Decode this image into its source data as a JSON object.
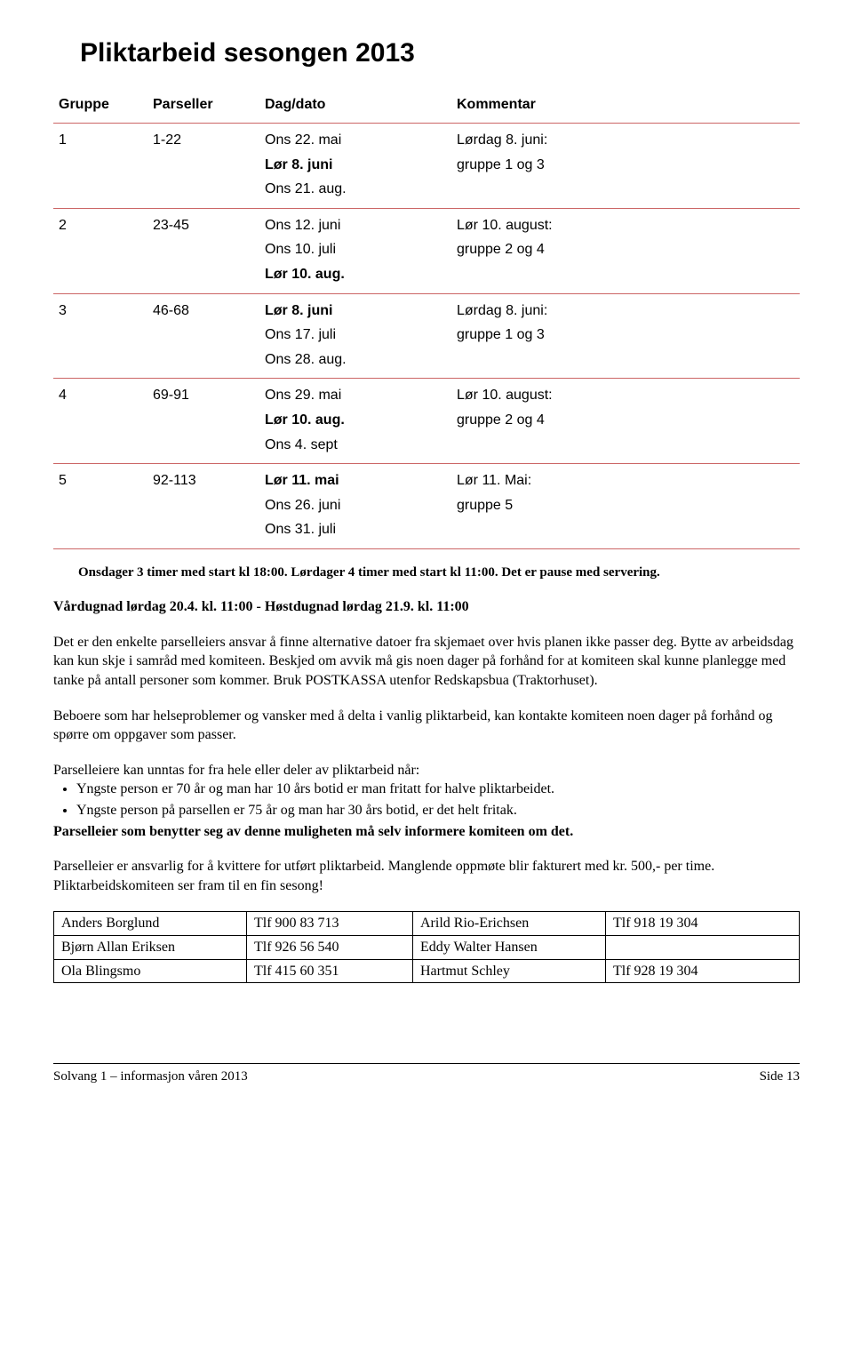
{
  "heading": "Pliktarbeid sesongen 2013",
  "table": {
    "headers": [
      "Gruppe",
      "Parseller",
      "Dag/dato",
      "Kommentar"
    ],
    "rows": [
      {
        "gruppe": "1",
        "parseller": "1-22",
        "dagdato": [
          {
            "text": "Ons 22. mai",
            "bold": false
          },
          {
            "text": "Lør  8. juni",
            "bold": true
          },
          {
            "text": "Ons 21. aug.",
            "bold": false
          }
        ],
        "kommentar": [
          {
            "text": "Lørdag 8. juni:",
            "bold": false
          },
          {
            "text": "gruppe 1 og 3",
            "bold": false
          }
        ]
      },
      {
        "gruppe": "2",
        "parseller": "23-45",
        "dagdato": [
          {
            "text": "Ons 12. juni",
            "bold": false
          },
          {
            "text": "Ons 10. juli",
            "bold": false
          },
          {
            "text": "Lør 10. aug.",
            "bold": true
          }
        ],
        "kommentar": [
          {
            "text": "Lør 10. august:",
            "bold": false
          },
          {
            "text": "gruppe 2 og 4",
            "bold": false
          }
        ]
      },
      {
        "gruppe": "3",
        "parseller": "46-68",
        "dagdato": [
          {
            "text": "Lør 8. juni",
            "bold": true
          },
          {
            "text": "Ons 17. juli",
            "bold": false
          },
          {
            "text": "Ons 28. aug.",
            "bold": false
          }
        ],
        "kommentar": [
          {
            "text": "Lørdag 8. juni:",
            "bold": false
          },
          {
            "text": "gruppe 1 og 3",
            "bold": false
          }
        ]
      },
      {
        "gruppe": "4",
        "parseller": "69-91",
        "dagdato": [
          {
            "text": "Ons 29. mai",
            "bold": false
          },
          {
            "text": "Lør 10. aug.",
            "bold": true
          },
          {
            "text": "Ons 4. sept",
            "bold": false
          }
        ],
        "kommentar": [
          {
            "text": "Lør 10. august:",
            "bold": false
          },
          {
            "text": "gruppe 2 og 4",
            "bold": false
          }
        ]
      },
      {
        "gruppe": "5",
        "parseller": "92-113",
        "dagdato": [
          {
            "text": "Lør 11. mai",
            "bold": true
          },
          {
            "text": "Ons 26. juni",
            "bold": false
          },
          {
            "text": "Ons 31. juli",
            "bold": false
          }
        ],
        "kommentar": [
          {
            "text": "Lør 11. Mai:",
            "bold": false
          },
          {
            "text": "gruppe 5",
            "bold": false
          }
        ]
      }
    ]
  },
  "footnote": "Onsdager 3 timer med start kl 18:00. Lørdager 4 timer med start kl 11:00. Det er pause med servering.",
  "subhead": "Vårdugnad lørdag 20.4. kl. 11:00 - Høstdugnad lørdag 21.9. kl. 11:00",
  "para1": "Det er den enkelte parselleiers ansvar å finne alternative datoer fra skjemaet over hvis planen ikke passer deg. Bytte av arbeidsdag kan kun skje i samråd med komiteen. Beskjed om avvik må gis noen dager på forhånd for at komiteen skal kunne planlegge med tanke på antall personer som kommer. Bruk POSTKASSA utenfor Redskapsbua (Traktorhuset).",
  "para2": "Beboere som har helseproblemer og vansker med å delta i vanlig pliktarbeid, kan kontakte komiteen noen dager på forhånd og spørre om oppgaver som passer.",
  "bullets_intro": "Parselleiere kan unntas for fra hele eller deler av pliktarbeid når:",
  "bullets": [
    "Yngste person er 70 år og man har 10 års botid er man fritatt for halve pliktarbeidet.",
    "Yngste person på parsellen er 75 år og man har 30 års botid, er det helt fritak."
  ],
  "bullets_bold": "Parselleier som benytter seg av denne muligheten må selv informere komiteen om det.",
  "para3": "Parselleier er ansvarlig for å kvittere for utført pliktarbeid. Manglende oppmøte blir fakturert med kr. 500,- per time. Pliktarbeidskomiteen ser fram til en fin sesong!",
  "contacts": {
    "rows": [
      [
        "Anders Borglund",
        "Tlf   900 83 713",
        "Arild Rio-Erichsen",
        "Tlf   918 19 304"
      ],
      [
        "Bjørn Allan Eriksen",
        "Tlf   926 56 540",
        "Eddy Walter Hansen",
        ""
      ],
      [
        "Ola Blingsmo",
        "Tlf   415 60 351",
        "Hartmut Schley",
        "Tlf   928 19 304"
      ]
    ]
  },
  "footer": {
    "left": "Solvang 1 – informasjon våren 2013",
    "right": "Side 13"
  }
}
